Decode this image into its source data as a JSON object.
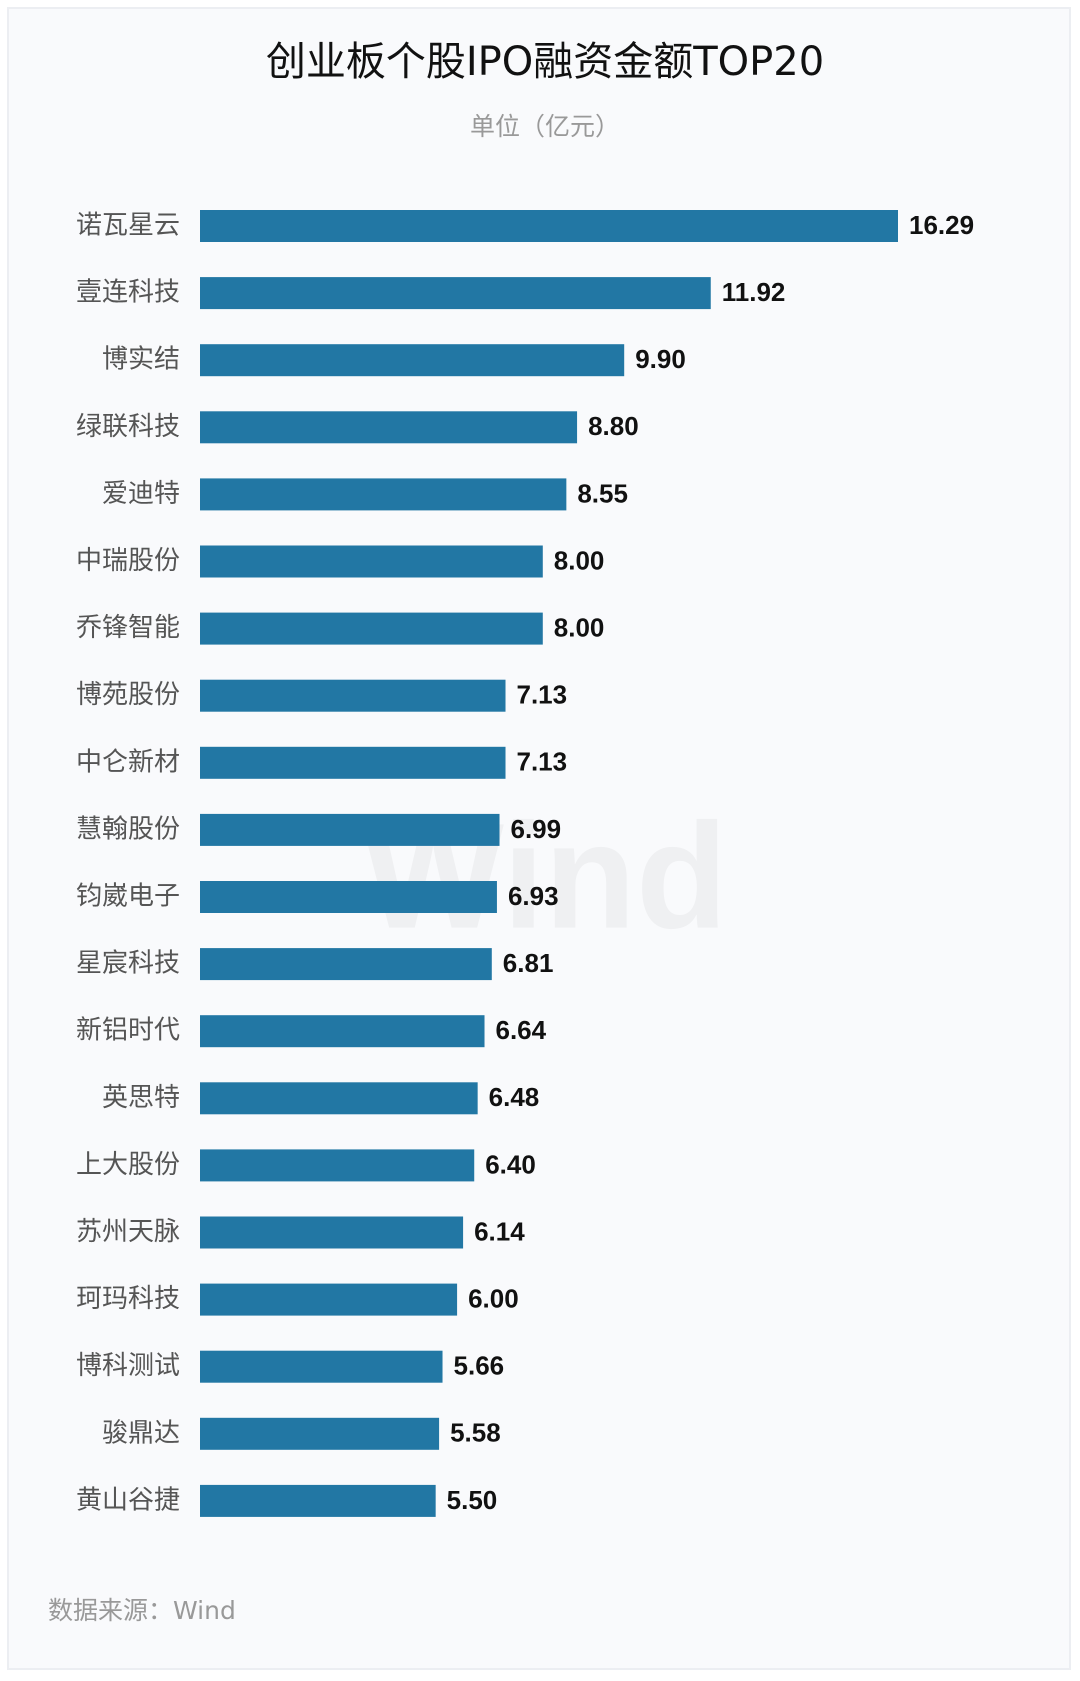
{
  "chart_data": {
    "type": "bar",
    "orientation": "horizontal",
    "title": "创业板个股IPO融资金额TOP20",
    "subtitle": "单位（亿元）",
    "categories": [
      "诺瓦星云",
      "壹连科技",
      "博实结",
      "绿联科技",
      "爱迪特",
      "中瑞股份",
      "乔锋智能",
      "博苑股份",
      "中仑新材",
      "慧翰股份",
      "钧崴电子",
      "星宸科技",
      "新铝时代",
      "英思特",
      "上大股份",
      "苏州天脉",
      "珂玛科技",
      "博科测试",
      "骏鼎达",
      "黄山谷捷"
    ],
    "values": [
      16.29,
      11.92,
      9.9,
      8.8,
      8.55,
      8.0,
      8.0,
      7.13,
      7.13,
      6.99,
      6.93,
      6.81,
      6.64,
      6.48,
      6.4,
      6.14,
      6.0,
      5.66,
      5.58,
      5.5
    ],
    "value_labels": [
      "16.29",
      "11.92",
      "9.90",
      "8.80",
      "8.55",
      "8.00",
      "8.00",
      "7.13",
      "7.13",
      "6.99",
      "6.93",
      "6.81",
      "6.64",
      "6.48",
      "6.40",
      "6.14",
      "6.00",
      "5.66",
      "5.58",
      "5.50"
    ],
    "color": "#2277a4",
    "watermark": "Wind",
    "source": "数据来源：Wind"
  }
}
